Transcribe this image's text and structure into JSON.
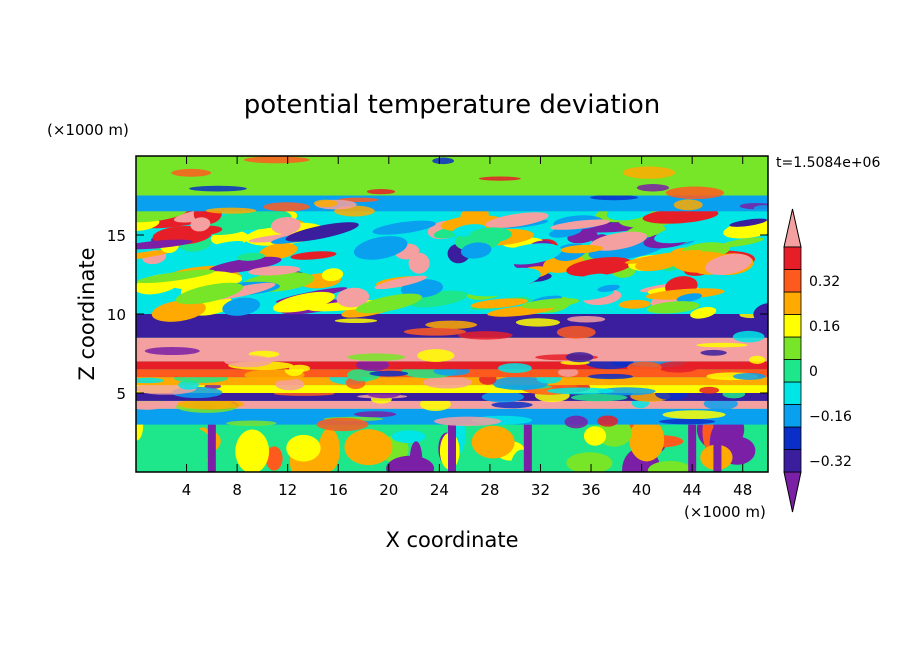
{
  "chart_data": {
    "type": "heatmap",
    "title": "potential temperature deviation",
    "xlabel": "X coordinate",
    "ylabel": "Z coordinate",
    "x_unit": "(×1000 m)",
    "y_unit": "(×1000 m)",
    "time_label": "t=1.5084e+06",
    "xlim": [
      0,
      50
    ],
    "ylim": [
      0,
      20
    ],
    "x_ticks": [
      "4",
      "8",
      "12",
      "16",
      "20",
      "24",
      "28",
      "32",
      "36",
      "40",
      "44",
      "48"
    ],
    "y_ticks": [
      "5",
      "10",
      "15"
    ],
    "colorbar": {
      "levels": [
        -0.4,
        -0.32,
        -0.24,
        -0.16,
        -0.08,
        0,
        0.08,
        0.16,
        0.24,
        0.32,
        0.4
      ],
      "tick_labels": [
        "0.32",
        "0.16",
        "0",
        "−0.16",
        "−0.32"
      ],
      "colors": [
        "#7a1fa6",
        "#3a1e9e",
        "#0a2fc8",
        "#0aa0f0",
        "#00e6e6",
        "#1ee68a",
        "#78e628",
        "#ffff00",
        "#ffaa00",
        "#ff5a1e",
        "#e61e28",
        "#f5a0a0"
      ],
      "extend": "both"
    },
    "bands": [
      {
        "z_range": [
          0,
          3
        ],
        "description": "plumes",
        "colors": [
          "#1ee68a",
          "#78e628",
          "#ffff00",
          "#ffaa00",
          "#ff5a1e",
          "#7a1fa6",
          "#00e6e6"
        ]
      },
      {
        "z_range": [
          3,
          4
        ],
        "value": -0.2
      },
      {
        "z_range": [
          4,
          4.5
        ],
        "value": 0.4
      },
      {
        "z_range": [
          4.5,
          5
        ],
        "value": -0.4
      },
      {
        "z_range": [
          5,
          5.5
        ],
        "value": 0.08
      },
      {
        "z_range": [
          5.5,
          6
        ],
        "value": 0.16
      },
      {
        "z_range": [
          6,
          6.5
        ],
        "value": 0.24
      },
      {
        "z_range": [
          6.5,
          7
        ],
        "value": 0.32
      },
      {
        "z_range": [
          7,
          8.5
        ],
        "value": 0.4
      },
      {
        "z_range": [
          8.5,
          10
        ],
        "value": -0.4
      },
      {
        "z_range": [
          10,
          16.5
        ],
        "description": "mixed blobs"
      },
      {
        "z_range": [
          16.5,
          17.5
        ],
        "value": -0.2
      },
      {
        "z_range": [
          17.5,
          20
        ],
        "value": 0.05
      }
    ]
  }
}
